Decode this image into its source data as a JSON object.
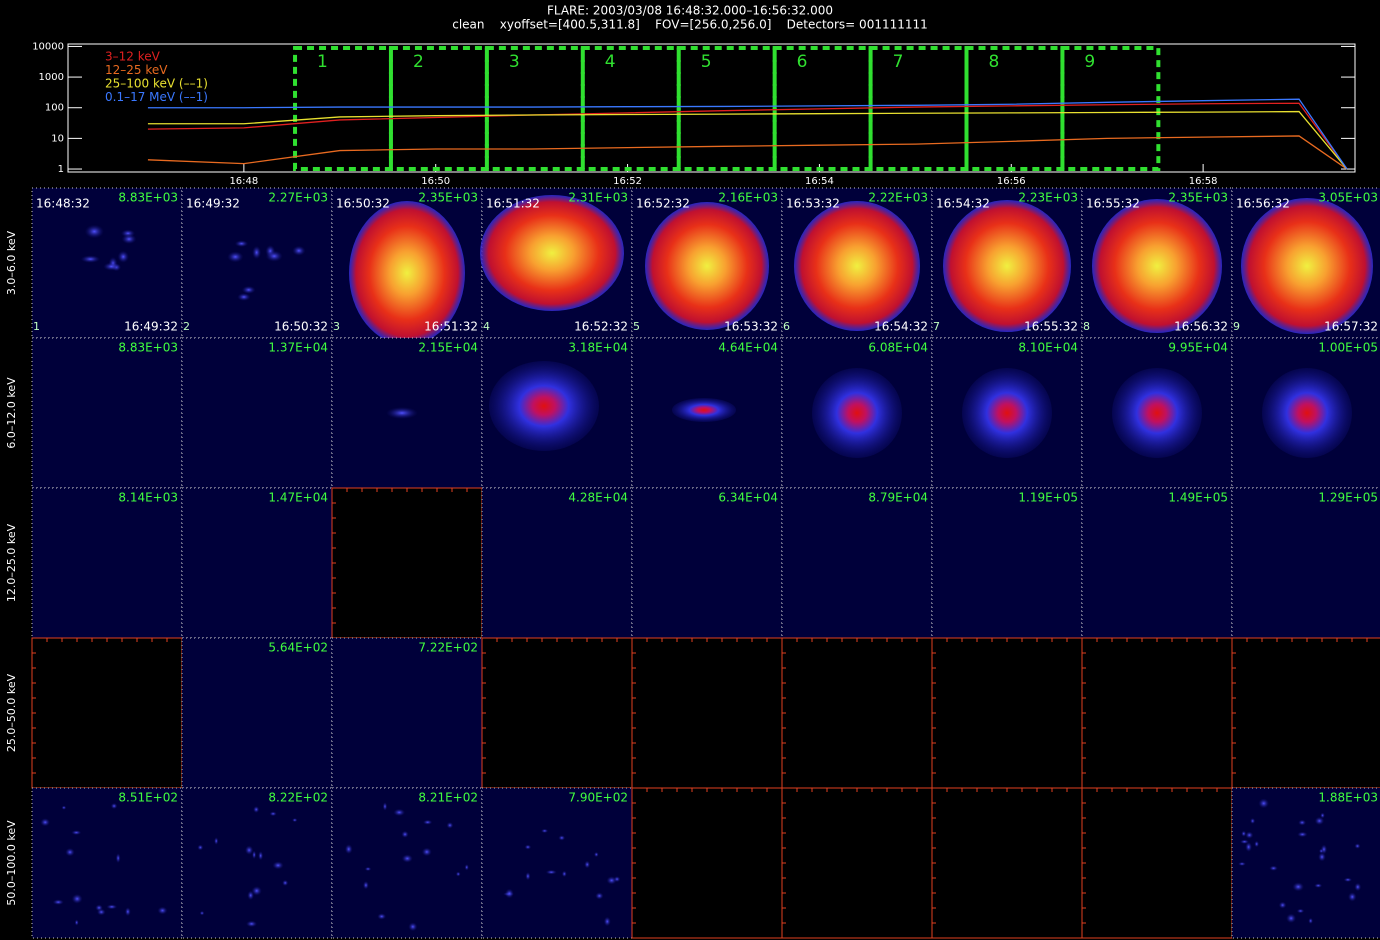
{
  "chart_data": {
    "type": "line",
    "title": "FLARE: 2003/03/08 16:48:32.000–16:56:32.000",
    "subtitle": "clean    xyoffset=[400.5,311.8]    FOV=[256.0,256.0]    Detectors= 001111111",
    "log_scale": true,
    "x": [
      "16:47",
      "16:48",
      "16:49",
      "16:50",
      "16:51",
      "16:52",
      "16:53",
      "16:54",
      "16:55",
      "16:56",
      "16:57",
      "16:58",
      "16:59",
      "16:59:30"
    ],
    "xlim": [
      "16:46:10",
      "16:59:35"
    ],
    "xticks": [
      "16:48",
      "16:50",
      "16:52",
      "16:54",
      "16:56",
      "16:58"
    ],
    "ylim": [
      0.8,
      12000
    ],
    "yticks": [
      1,
      10,
      100,
      1000,
      10000
    ],
    "series": [
      {
        "name": "3–12 keV",
        "color": "#e02020",
        "values": [
          20,
          22,
          40,
          48,
          58,
          68,
          80,
          92,
          105,
          115,
          125,
          135,
          140,
          1
        ]
      },
      {
        "name": "12–25 keV",
        "color": "#e86a20",
        "values": [
          2,
          1.5,
          4,
          4.5,
          4.5,
          5,
          5.5,
          6,
          6.5,
          8,
          10,
          11,
          12,
          1
        ]
      },
      {
        "name": "25–100 keV (––1)",
        "color": "#e8e030",
        "values": [
          30,
          30,
          50,
          55,
          58,
          60,
          62,
          64,
          66,
          68,
          70,
          72,
          75,
          1
        ]
      },
      {
        "name": "0.1–17 MeV (––1)",
        "color": "#3a78ff",
        "values": [
          100,
          100,
          105,
          105,
          105,
          108,
          110,
          115,
          120,
          130,
          150,
          170,
          190,
          1
        ]
      }
    ],
    "intervals": [
      {
        "label": "1",
        "start": "16:48:32",
        "end": "16:49:32"
      },
      {
        "label": "2",
        "start": "16:49:32",
        "end": "16:50:32"
      },
      {
        "label": "3",
        "start": "16:50:32",
        "end": "16:51:32"
      },
      {
        "label": "4",
        "start": "16:51:32",
        "end": "16:52:32"
      },
      {
        "label": "5",
        "start": "16:52:32",
        "end": "16:53:32"
      },
      {
        "label": "6",
        "start": "16:53:32",
        "end": "16:54:32"
      },
      {
        "label": "7",
        "start": "16:54:32",
        "end": "16:55:32"
      },
      {
        "label": "8",
        "start": "16:55:32",
        "end": "16:56:32"
      },
      {
        "label": "9",
        "start": "16:56:32",
        "end": "16:57:32"
      }
    ],
    "image_rows": [
      {
        "label": "3.0–6.0 keV",
        "cells": [
          "8.83E+03",
          "2.27E+03",
          "2.35E+03",
          "2.31E+03",
          "2.16E+03",
          "2.22E+03",
          "2.23E+03",
          "2.35E+03",
          "3.05E+03"
        ]
      },
      {
        "label": "6.0–12.0 keV",
        "cells": [
          "8.83E+03",
          "1.37E+04",
          "2.15E+04",
          "3.18E+04",
          "4.64E+04",
          "6.08E+04",
          "8.10E+04",
          "9.95E+04",
          "1.00E+05"
        ]
      },
      {
        "label": "12.0–25.0 keV",
        "cells": [
          "8.14E+03",
          "1.47E+04",
          null,
          "4.28E+04",
          "6.34E+04",
          "8.79E+04",
          "1.19E+05",
          "1.49E+05",
          "1.29E+05"
        ]
      },
      {
        "label": "25.0–50.0 keV",
        "cells": [
          null,
          "5.64E+02",
          "7.22E+02",
          null,
          null,
          null,
          null,
          null,
          null
        ]
      },
      {
        "label": "50.0–100.0 keV",
        "cells": [
          "8.51E+02",
          "8.22E+02",
          "8.21E+02",
          "7.90E+02",
          null,
          null,
          null,
          null,
          "1.88E+03"
        ]
      }
    ]
  }
}
